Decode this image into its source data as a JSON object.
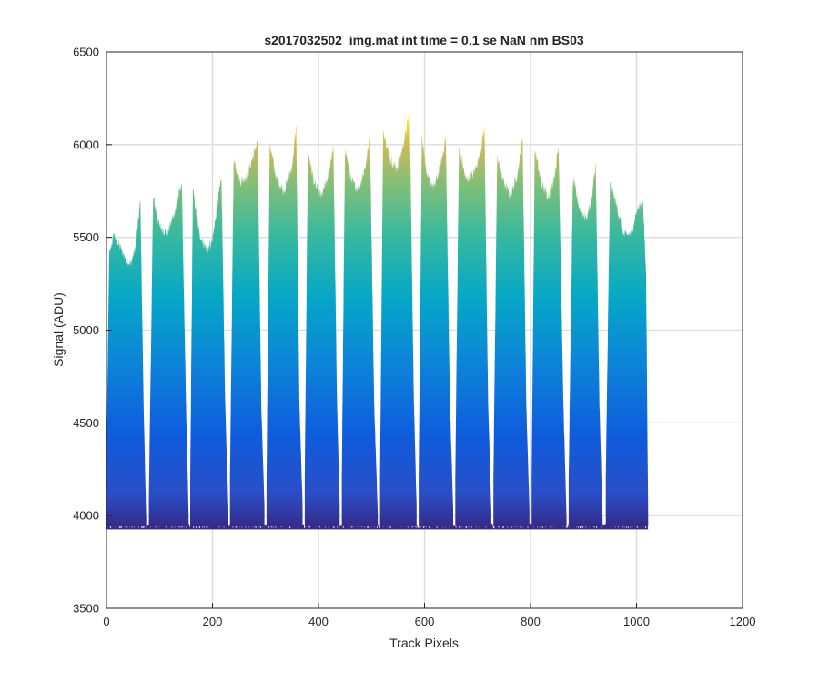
{
  "chart_data": {
    "type": "area",
    "title": "s2017032502_img.mat int time = 0.1 se  NaN nm BS03",
    "xlabel": "Track Pixels",
    "ylabel": "Signal (ADU)",
    "xlim": [
      0,
      1200
    ],
    "ylim": [
      3500,
      6500
    ],
    "xticks": [
      0,
      200,
      400,
      600,
      800,
      1000,
      1200
    ],
    "yticks": [
      3500,
      4000,
      4500,
      5000,
      5500,
      6000,
      6500
    ],
    "xtick_labels": [
      "0",
      "200",
      "400",
      "600",
      "800",
      "1000",
      "1200"
    ],
    "ytick_labels": [
      "3500",
      "4000",
      "4500",
      "5000",
      "5500",
      "6000",
      "6500"
    ],
    "grid": true,
    "colormap": "parula (height-coloured)",
    "colors": {
      "low": "#352a87",
      "mid_blue": "#0f5cdd",
      "cyan": "#06a7c6",
      "green": "#80bf78",
      "yellow": "#f9fb0e"
    },
    "baseline": 3940,
    "series": [
      {
        "values": [
          [
            0,
            4300
          ],
          [
            5,
            5400
          ],
          [
            14,
            5520
          ],
          [
            30,
            5420
          ],
          [
            45,
            5350
          ],
          [
            55,
            5450
          ],
          [
            64,
            5700
          ],
          [
            70,
            4600
          ],
          [
            75,
            3980
          ]
        ]
      },
      {
        "values": [
          [
            80,
            4100
          ],
          [
            88,
            5720
          ],
          [
            100,
            5560
          ],
          [
            115,
            5520
          ],
          [
            130,
            5650
          ],
          [
            142,
            5800
          ],
          [
            150,
            4600
          ],
          [
            155,
            4000
          ]
        ]
      },
      {
        "values": [
          [
            158,
            4200
          ],
          [
            163,
            5760
          ],
          [
            175,
            5520
          ],
          [
            190,
            5430
          ],
          [
            200,
            5480
          ],
          [
            210,
            5700
          ],
          [
            217,
            5810
          ],
          [
            224,
            4600
          ],
          [
            230,
            4040
          ]
        ]
      },
      {
        "values": [
          [
            233,
            4200
          ],
          [
            240,
            5930
          ],
          [
            252,
            5800
          ],
          [
            265,
            5830
          ],
          [
            278,
            5950
          ],
          [
            285,
            6020
          ],
          [
            292,
            4600
          ],
          [
            298,
            4060
          ]
        ]
      },
      {
        "values": [
          [
            302,
            4200
          ],
          [
            308,
            6010
          ],
          [
            320,
            5820
          ],
          [
            335,
            5750
          ],
          [
            350,
            5880
          ],
          [
            358,
            6100
          ],
          [
            364,
            4600
          ],
          [
            370,
            4050
          ]
        ]
      },
      {
        "values": [
          [
            374,
            4200
          ],
          [
            380,
            5970
          ],
          [
            392,
            5790
          ],
          [
            405,
            5720
          ],
          [
            418,
            5820
          ],
          [
            428,
            6000
          ],
          [
            435,
            4600
          ],
          [
            440,
            4060
          ]
        ]
      },
      {
        "values": [
          [
            444,
            4200
          ],
          [
            450,
            5990
          ],
          [
            462,
            5800
          ],
          [
            476,
            5760
          ],
          [
            490,
            5900
          ],
          [
            497,
            6060
          ],
          [
            505,
            4600
          ],
          [
            512,
            4000
          ]
        ]
      },
      {
        "values": [
          [
            516,
            4200
          ],
          [
            522,
            6090
          ],
          [
            535,
            5920
          ],
          [
            548,
            5870
          ],
          [
            560,
            6000
          ],
          [
            572,
            6180
          ],
          [
            580,
            4600
          ],
          [
            585,
            4060
          ]
        ]
      },
      {
        "values": [
          [
            589,
            4200
          ],
          [
            595,
            6060
          ],
          [
            605,
            5820
          ],
          [
            618,
            5770
          ],
          [
            630,
            5880
          ],
          [
            640,
            6040
          ],
          [
            648,
            4600
          ],
          [
            654,
            4040
          ]
        ]
      },
      {
        "values": [
          [
            658,
            4200
          ],
          [
            665,
            5990
          ],
          [
            678,
            5810
          ],
          [
            692,
            5840
          ],
          [
            705,
            5950
          ],
          [
            713,
            6100
          ],
          [
            720,
            4600
          ],
          [
            726,
            4030
          ]
        ]
      },
      {
        "values": [
          [
            730,
            4200
          ],
          [
            737,
            5930
          ],
          [
            748,
            5810
          ],
          [
            762,
            5720
          ],
          [
            776,
            5850
          ],
          [
            785,
            6030
          ],
          [
            792,
            4600
          ],
          [
            798,
            4030
          ]
        ]
      },
      {
        "values": [
          [
            802,
            4200
          ],
          [
            808,
            5980
          ],
          [
            820,
            5790
          ],
          [
            834,
            5720
          ],
          [
            845,
            5830
          ],
          [
            853,
            5990
          ],
          [
            862,
            4600
          ],
          [
            868,
            3980
          ]
        ]
      },
      {
        "values": [
          [
            872,
            4200
          ],
          [
            880,
            5820
          ],
          [
            892,
            5660
          ],
          [
            905,
            5600
          ],
          [
            915,
            5700
          ],
          [
            923,
            5900
          ],
          [
            930,
            4600
          ],
          [
            936,
            3980
          ]
        ]
      },
      {
        "values": [
          [
            942,
            4200
          ],
          [
            950,
            5790
          ],
          [
            962,
            5680
          ],
          [
            976,
            5510
          ],
          [
            990,
            5520
          ],
          [
            1000,
            5640
          ],
          [
            1012,
            5700
          ],
          [
            1018,
            5300
          ],
          [
            1022,
            3990
          ]
        ]
      }
    ]
  }
}
